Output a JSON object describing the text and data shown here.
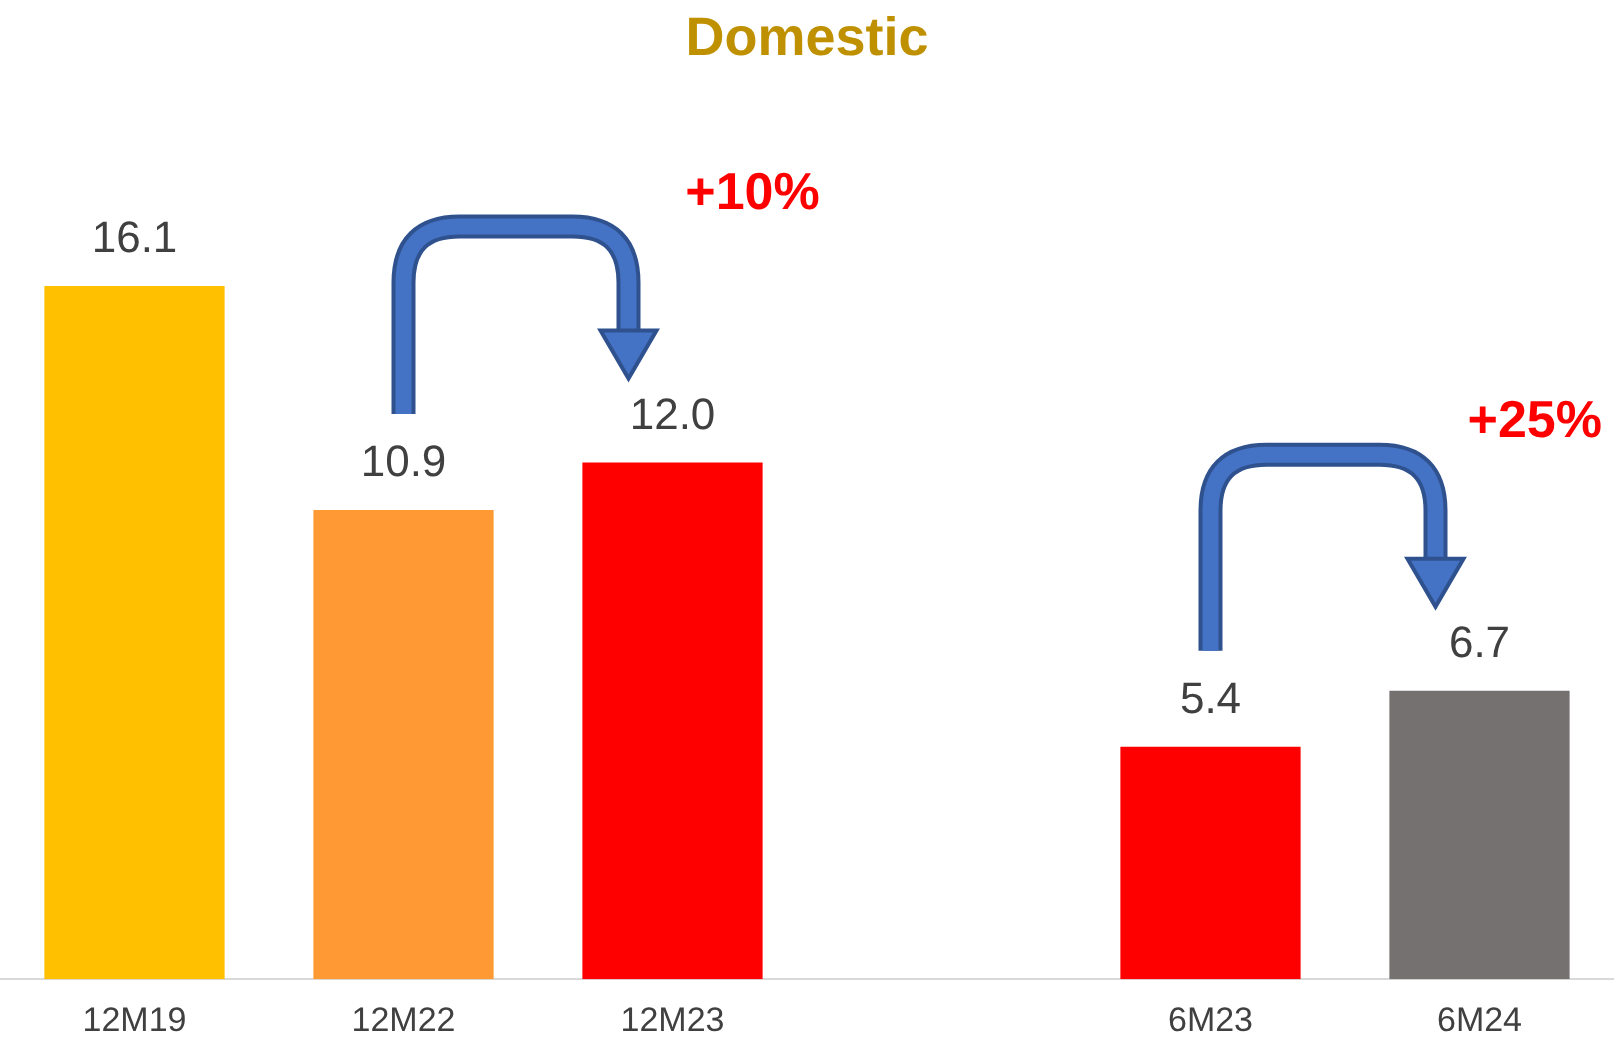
{
  "chart_data": {
    "type": "bar",
    "title": "Domestic",
    "categories": [
      "12M19",
      "12M22",
      "12M23",
      null,
      "6M23",
      "6M24"
    ],
    "values": [
      16.1,
      10.9,
      12.0,
      null,
      5.4,
      6.7
    ],
    "value_labels": [
      "16.1",
      "10.9",
      "12.0",
      null,
      "5.4",
      "6.7"
    ],
    "colors": [
      "#ffc000",
      "#ff9933",
      "#ff0000",
      null,
      "#ff0000",
      "#767171"
    ],
    "annotations": [
      "+10%",
      "+25%"
    ]
  }
}
